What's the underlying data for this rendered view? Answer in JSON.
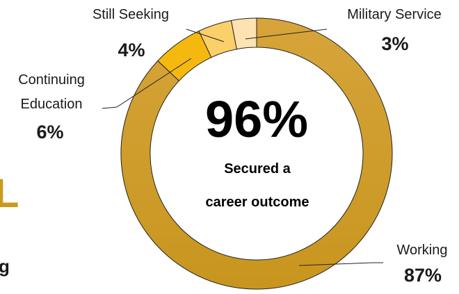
{
  "chart_data": {
    "type": "pie",
    "subtype": "donut",
    "center_value": "96%",
    "center_text": [
      "Secured a",
      "career outcome"
    ],
    "slices": [
      {
        "name": "Working",
        "value": 87,
        "label": "87%",
        "color": "#d4a230"
      },
      {
        "name": "Continuing Education",
        "value": 6,
        "label": "6%",
        "color": "#f5b80f"
      },
      {
        "name": "Still Seeking",
        "value": 4,
        "label": "4%",
        "color": "#fbd06a"
      },
      {
        "name": "Military Service",
        "value": 3,
        "label": "3%",
        "color": "#fde2b2"
      }
    ]
  },
  "labels": {
    "working": {
      "name": "Working",
      "pct": "87%"
    },
    "continuing": {
      "name_line1": "Continuing",
      "name_line2": "Education",
      "pct": "6%"
    },
    "still_seeking": {
      "name": "Still Seeking",
      "pct": "4%"
    },
    "military": {
      "name": "Military Service",
      "pct": "3%"
    }
  },
  "clipped_left": {
    "char_top": "L",
    "char_bottom": "g",
    "color_top": "#c99a1c",
    "color_bottom": "#1a1a1a"
  }
}
